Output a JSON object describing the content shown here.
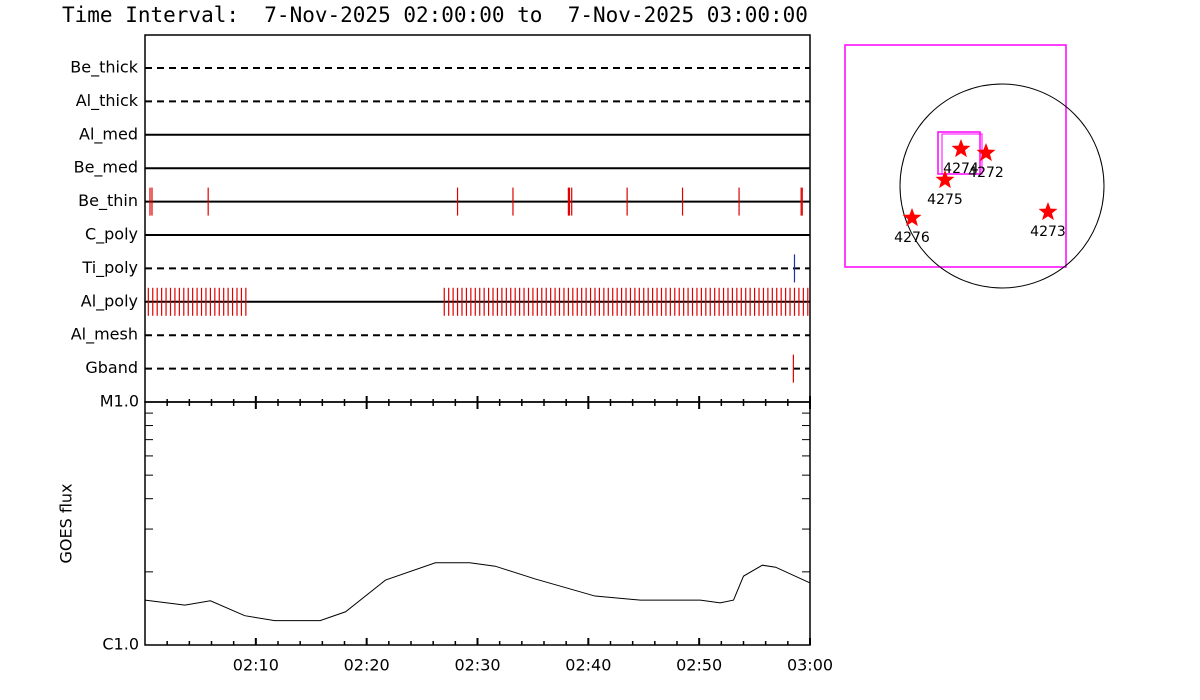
{
  "title": "Time Interval:  7-Nov-2025 02:00:00 to  7-Nov-2025 03:00:00",
  "chart_data": [
    {
      "type": "timeline",
      "xlim": [
        0,
        60
      ],
      "rows": [
        {
          "name": "Be_thick",
          "line": "dashed",
          "events": []
        },
        {
          "name": "Al_thick",
          "line": "dashed",
          "events": []
        },
        {
          "name": "Al_med",
          "line": "solid",
          "events": []
        },
        {
          "name": "Be_med",
          "line": "solid",
          "events": []
        },
        {
          "name": "Be_thin",
          "line": "solid",
          "color": "#e00000",
          "events": [
            0.45,
            0.63,
            5.7,
            28.2,
            33.2,
            38.2,
            38.3,
            38.5,
            43.5,
            48.5,
            53.6,
            59.2,
            59.3
          ]
        },
        {
          "name": "C_poly",
          "line": "solid",
          "events": []
        },
        {
          "name": "Ti_poly",
          "line": "dashed",
          "color": "#2030a0",
          "events": [
            58.6
          ]
        },
        {
          "name": "Al_poly",
          "line": "solid",
          "color": "#e00000",
          "events": [
            0.3,
            0.7,
            1.1,
            1.5,
            1.9,
            2.3,
            2.7,
            3.1,
            3.5,
            3.9,
            4.3,
            4.7,
            5.1,
            5.5,
            5.9,
            6.3,
            6.7,
            7.1,
            7.5,
            7.9,
            8.3,
            8.7,
            9.1,
            27.0,
            27.4,
            27.8,
            28.2,
            28.6,
            29.0,
            29.4,
            29.8,
            30.2,
            30.6,
            31.0,
            31.4,
            31.8,
            32.2,
            32.6,
            33.0,
            33.4,
            33.8,
            34.2,
            34.6,
            35.0,
            35.4,
            35.8,
            36.2,
            36.6,
            37.0,
            37.4,
            37.8,
            38.2,
            38.6,
            39.0,
            39.4,
            39.8,
            40.2,
            40.6,
            41.0,
            41.4,
            41.8,
            42.2,
            42.6,
            43.0,
            43.4,
            43.8,
            44.2,
            44.6,
            45.0,
            45.4,
            45.8,
            46.2,
            46.6,
            47.0,
            47.4,
            47.8,
            48.2,
            48.6,
            49.0,
            49.4,
            49.8,
            50.2,
            50.6,
            51.0,
            51.4,
            51.8,
            52.2,
            52.6,
            53.0,
            53.4,
            53.8,
            54.2,
            54.6,
            55.0,
            55.4,
            55.8,
            56.2,
            56.6,
            57.0,
            57.4,
            57.8,
            58.2,
            58.6,
            59.0,
            59.4,
            59.8
          ]
        },
        {
          "name": "Al_mesh",
          "line": "dashed",
          "events": []
        },
        {
          "name": "Gband",
          "line": "dashed",
          "color": "#e00000",
          "events": [
            58.5
          ]
        }
      ]
    },
    {
      "type": "line",
      "ylabel": "GOES flux",
      "log_y": true,
      "color": "#000000",
      "x": [
        0,
        3.6,
        5.9,
        9.0,
        11.7,
        15.8,
        18.1,
        21.7,
        26.2,
        29.3,
        31.6,
        35.2,
        40.6,
        44.7,
        50.1,
        51.9,
        53.1,
        54.0,
        55.7,
        56.9,
        60
      ],
      "values": [
        1.53e-06,
        1.46e-06,
        1.52e-06,
        1.32e-06,
        1.26e-06,
        1.26e-06,
        1.37e-06,
        1.85e-06,
        2.18e-06,
        2.18e-06,
        2.11e-06,
        1.87e-06,
        1.59e-06,
        1.53e-06,
        1.53e-06,
        1.49e-06,
        1.53e-06,
        1.92e-06,
        2.13e-06,
        2.09e-06,
        1.8e-06
      ],
      "xlim": [
        0,
        60
      ],
      "xticks": [
        {
          "value": 10,
          "label": "02:10"
        },
        {
          "value": 20,
          "label": "02:20"
        },
        {
          "value": 30,
          "label": "02:30"
        },
        {
          "value": 40,
          "label": "02:40"
        },
        {
          "value": 50,
          "label": "02:50"
        },
        {
          "value": 60,
          "label": "03:00"
        }
      ],
      "minor_xticks": [
        2,
        4,
        6,
        8,
        12,
        14,
        16,
        18,
        22,
        24,
        26,
        28,
        32,
        34,
        36,
        38,
        42,
        44,
        46,
        48,
        52,
        54,
        56,
        58
      ],
      "ylim": [
        1e-06,
        1e-05
      ],
      "yticks": [
        {
          "value": 1e-06,
          "label": "C1.0"
        },
        {
          "value": 1e-05,
          "label": "M1.0"
        }
      ],
      "minor_yticks": [
        2e-06,
        3e-06,
        4e-06,
        5e-06,
        6e-06,
        7e-06,
        8e-06,
        9e-06
      ]
    },
    {
      "type": "map",
      "box_color": "#ff00ff",
      "star_color": "#ff0000",
      "active_regions": [
        "4274",
        "4272",
        "4275",
        "4276",
        "4273"
      ]
    }
  ]
}
